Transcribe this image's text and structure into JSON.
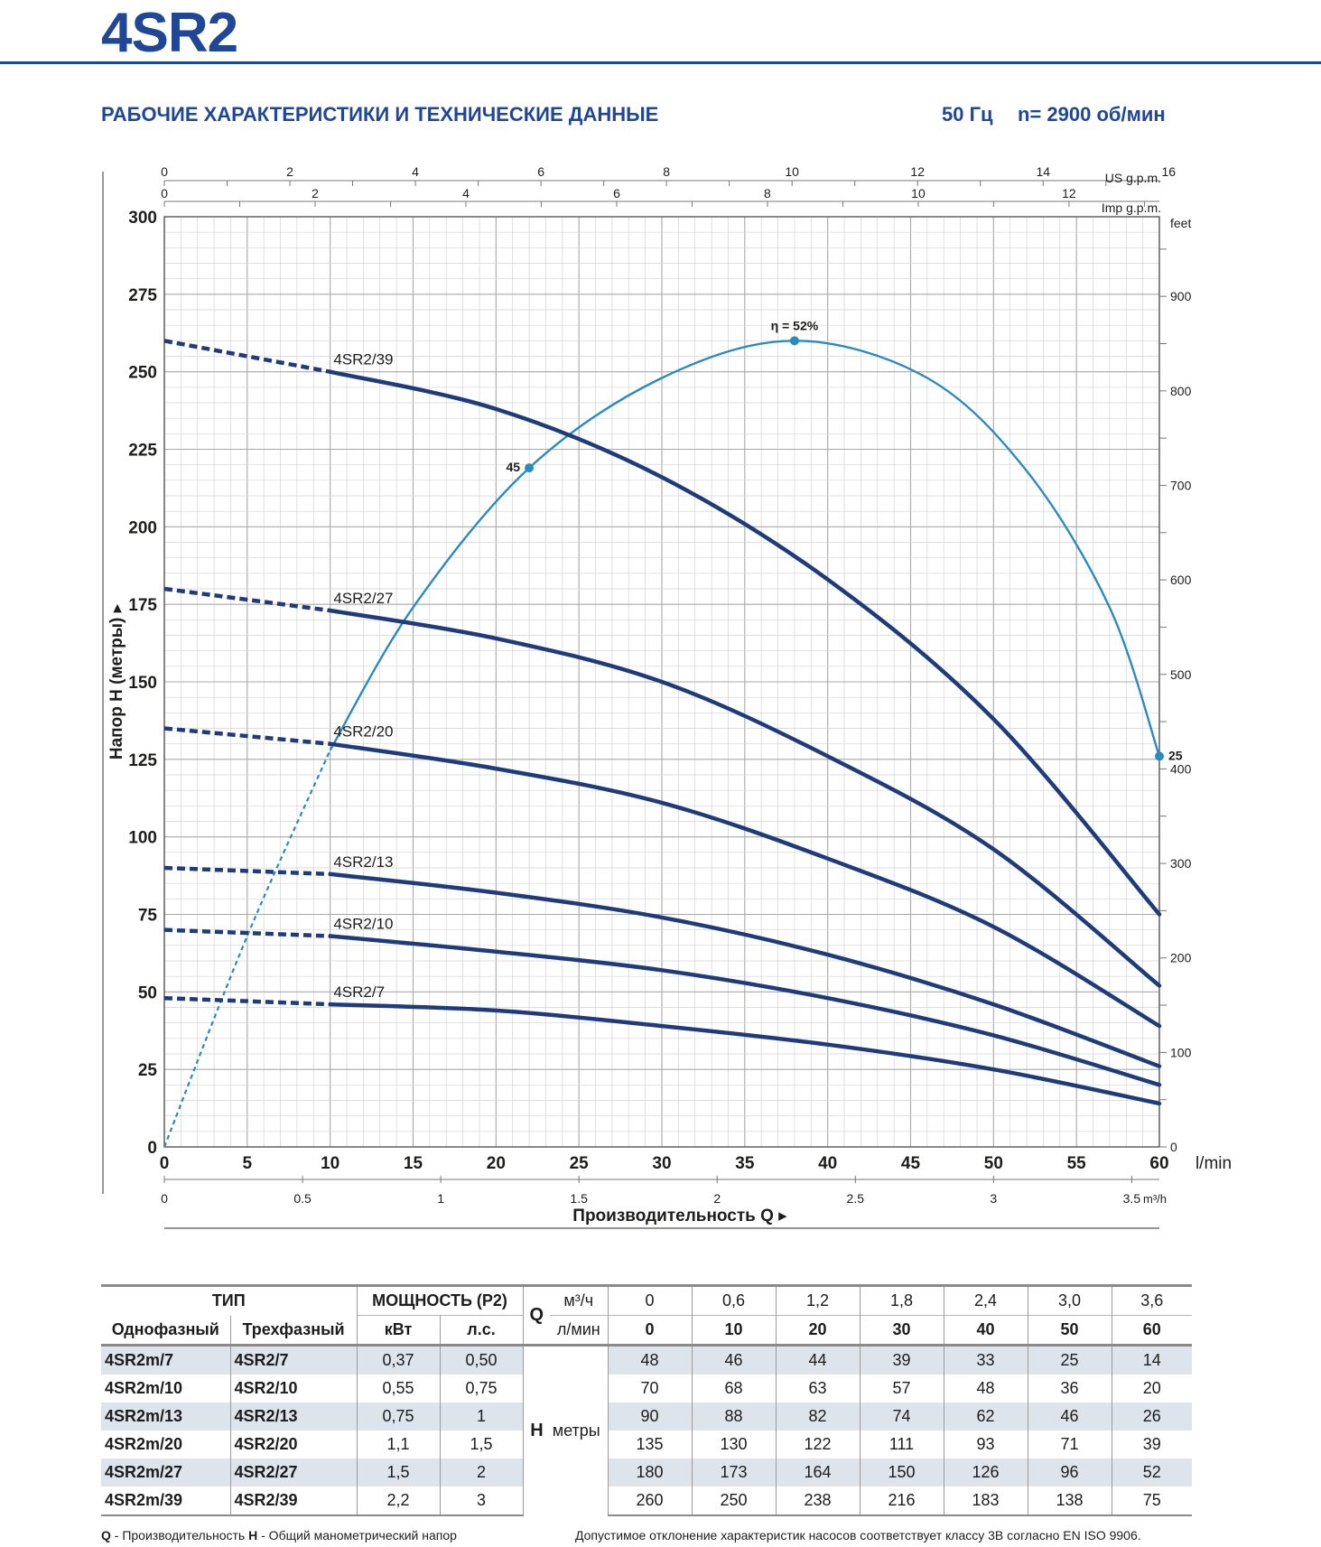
{
  "header": {
    "model": "4SR2",
    "section_title": "РАБОЧИЕ ХАРАКТЕРИСТИКИ И ТЕХНИЧЕСКИЕ ДАННЫЕ",
    "frequency": "50 Гц",
    "speed": "n= 2900 об/мин"
  },
  "chart_data": {
    "type": "line",
    "xlabel": "Производительность Q",
    "ylabel": "Напор H (метры)",
    "x_unit": "l/min",
    "xlim": [
      0,
      60
    ],
    "ylim": [
      0,
      300
    ],
    "x_ticks": [
      0,
      5,
      10,
      15,
      20,
      25,
      30,
      35,
      40,
      45,
      50,
      55,
      60
    ],
    "y_ticks": [
      0,
      25,
      50,
      75,
      100,
      125,
      150,
      175,
      200,
      225,
      250,
      275,
      300
    ],
    "secondary_axes": {
      "us_gpm": {
        "label": "US g.p.m.",
        "ticks": [
          0,
          2,
          4,
          6,
          8,
          10,
          12,
          14,
          16
        ]
      },
      "imp_gpm": {
        "label": "Imp g.p.m.",
        "ticks": [
          0,
          2,
          4,
          6,
          8,
          10,
          12
        ]
      },
      "feet": {
        "label": "feet",
        "ticks": [
          0,
          100,
          200,
          300,
          400,
          500,
          600,
          700,
          800,
          900
        ]
      },
      "m3h": {
        "label": "m³/h",
        "ticks": [
          "0",
          "0.5",
          "1",
          "1.5",
          "2",
          "2.5",
          "3",
          "3.5"
        ]
      }
    },
    "x": [
      0,
      10,
      20,
      30,
      40,
      50,
      60
    ],
    "series": [
      {
        "name": "4SR2/39",
        "values": [
          260,
          250,
          238,
          216,
          183,
          138,
          75
        ]
      },
      {
        "name": "4SR2/27",
        "values": [
          180,
          173,
          164,
          150,
          126,
          96,
          52
        ]
      },
      {
        "name": "4SR2/20",
        "values": [
          135,
          130,
          122,
          111,
          93,
          71,
          39
        ]
      },
      {
        "name": "4SR2/13",
        "values": [
          90,
          88,
          82,
          74,
          62,
          46,
          26
        ]
      },
      {
        "name": "4SR2/10",
        "values": [
          70,
          68,
          63,
          57,
          48,
          36,
          20
        ]
      },
      {
        "name": "4SR2/7",
        "values": [
          48,
          46,
          44,
          39,
          33,
          25,
          14
        ]
      }
    ],
    "dashed_until_x": 10,
    "efficiency": {
      "points": [
        {
          "q": 0,
          "h": 0
        },
        {
          "q": 5,
          "h": 68
        },
        {
          "q": 10,
          "h": 128
        },
        {
          "q": 15,
          "h": 174
        },
        {
          "q": 22,
          "h": 219,
          "label": "45"
        },
        {
          "q": 30,
          "h": 248
        },
        {
          "q": 38,
          "h": 260,
          "label": "η = 52%"
        },
        {
          "q": 46,
          "h": 248
        },
        {
          "q": 52,
          "h": 218
        },
        {
          "q": 57,
          "h": 174
        },
        {
          "q": 60,
          "h": 126,
          "label": "25"
        }
      ],
      "dashed_until_q": 10,
      "color": "#2a8bbf"
    },
    "curve_color": "#1f3b7a",
    "grid": true
  },
  "table": {
    "head": {
      "type": "ТИП",
      "power": "МОЩНОСТЬ (P2)",
      "single": "Однофазный",
      "three": "Трехфазный",
      "kw": "кВт",
      "hp": "л.с.",
      "q": "Q",
      "m3h": "м³/ч",
      "lmin": "л/мин",
      "h": "H",
      "h_unit": "метры"
    },
    "q_m3h": [
      "0",
      "0,6",
      "1,2",
      "1,8",
      "2,4",
      "3,0",
      "3,6"
    ],
    "q_lmin": [
      "0",
      "10",
      "20",
      "30",
      "40",
      "50",
      "60"
    ],
    "rows": [
      {
        "single": "4SR2m/7",
        "three": "4SR2/7",
        "kw": "0,37",
        "hp": "0,50",
        "h": [
          "48",
          "46",
          "44",
          "39",
          "33",
          "25",
          "14"
        ]
      },
      {
        "single": "4SR2m/10",
        "three": "4SR2/10",
        "kw": "0,55",
        "hp": "0,75",
        "h": [
          "70",
          "68",
          "63",
          "57",
          "48",
          "36",
          "20"
        ]
      },
      {
        "single": "4SR2m/13",
        "three": "4SR2/13",
        "kw": "0,75",
        "hp": "1",
        "h": [
          "90",
          "88",
          "82",
          "74",
          "62",
          "46",
          "26"
        ]
      },
      {
        "single": "4SR2m/20",
        "three": "4SR2/20",
        "kw": "1,1",
        "hp": "1,5",
        "h": [
          "135",
          "130",
          "122",
          "111",
          "93",
          "71",
          "39"
        ]
      },
      {
        "single": "4SR2m/27",
        "three": "4SR2/27",
        "kw": "1,5",
        "hp": "2",
        "h": [
          "180",
          "173",
          "164",
          "150",
          "126",
          "96",
          "52"
        ]
      },
      {
        "single": "4SR2m/39",
        "three": "4SR2/39",
        "kw": "2,2",
        "hp": "3",
        "h": [
          "260",
          "250",
          "238",
          "216",
          "183",
          "138",
          "75"
        ]
      }
    ]
  },
  "footer": {
    "q_label": "Q",
    "q_text": " - Производительность  ",
    "h_label": "H",
    "h_text": " - Общий манометрический напор",
    "tolerance": "Допустимое отклонение характеристик насосов соответствует классу 3B согласно EN ISO 9906."
  }
}
